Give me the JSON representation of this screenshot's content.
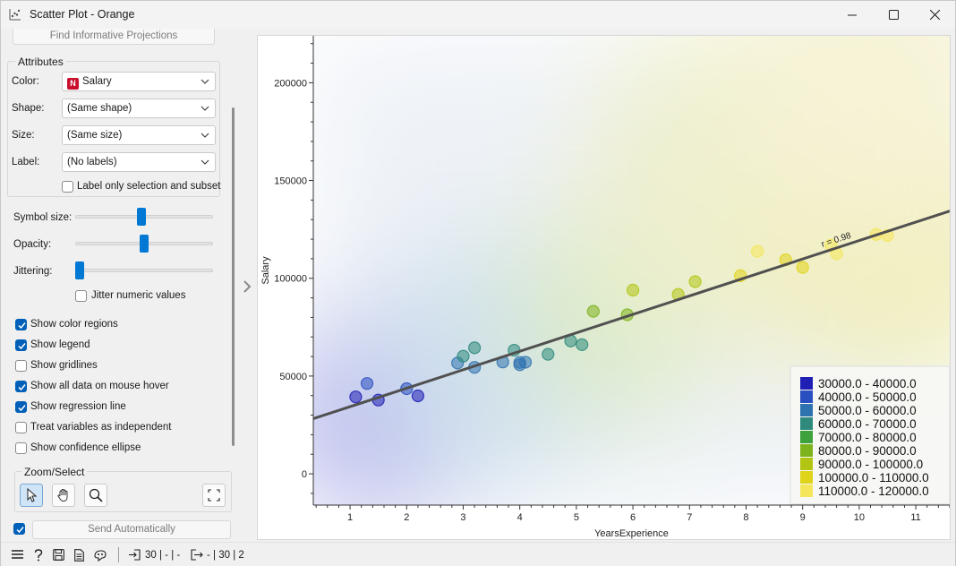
{
  "window": {
    "title": "Scatter Plot - Orange"
  },
  "sidebar": {
    "find_projections_label": "Find Informative Projections",
    "attributes_title": "Attributes",
    "color_label": "Color:",
    "color_badge": "N",
    "color_value": "Salary",
    "shape_label": "Shape:",
    "shape_value": "(Same shape)",
    "size_label": "Size:",
    "size_value": "(Same size)",
    "label_label": "Label:",
    "label_value": "(No labels)",
    "label_only_selection": {
      "label": "Label only selection and subset",
      "checked": false
    },
    "symbol_size_label": "Symbol size:",
    "symbol_size_level": 0.48,
    "opacity_label": "Opacity:",
    "opacity_level": 0.5,
    "jittering_label": "Jittering:",
    "jittering_level": 0.0,
    "jitter_numeric": {
      "label": "Jitter numeric values",
      "checked": false
    },
    "checks": [
      {
        "label": "Show color regions",
        "checked": true
      },
      {
        "label": "Show legend",
        "checked": true
      },
      {
        "label": "Show gridlines",
        "checked": false
      },
      {
        "label": "Show all data on mouse hover",
        "checked": true
      },
      {
        "label": "Show regression line",
        "checked": true
      },
      {
        "label": "Treat variables as independent",
        "checked": false
      },
      {
        "label": "Show confidence ellipse",
        "checked": false
      }
    ],
    "zoom_select_title": "Zoom/Select",
    "send_auto_checked": true,
    "send_auto_label": "Send Automatically"
  },
  "statusbar": {
    "input_summary": "30 | - | -",
    "output_summary": "- | 30 | 2"
  },
  "chart_data": {
    "type": "scatter",
    "xlabel": "YearsExperience",
    "ylabel": "Salary",
    "xlim": [
      0.35,
      11.6
    ],
    "ylim": [
      -16000,
      224000
    ],
    "xticks": [
      1,
      2,
      3,
      4,
      5,
      6,
      7,
      8,
      9,
      10,
      11
    ],
    "yticks": [
      0,
      50000,
      100000,
      150000,
      200000
    ],
    "points": [
      [
        1.1,
        39343
      ],
      [
        1.3,
        46205
      ],
      [
        1.5,
        37731
      ],
      [
        2.0,
        43525
      ],
      [
        2.2,
        39891
      ],
      [
        2.9,
        56642
      ],
      [
        3.0,
        60150
      ],
      [
        3.2,
        54445
      ],
      [
        3.2,
        64445
      ],
      [
        3.7,
        57189
      ],
      [
        3.9,
        63218
      ],
      [
        4.0,
        55794
      ],
      [
        4.0,
        56957
      ],
      [
        4.1,
        57081
      ],
      [
        4.5,
        61111
      ],
      [
        4.9,
        67938
      ],
      [
        5.1,
        66029
      ],
      [
        5.3,
        83088
      ],
      [
        5.9,
        81363
      ],
      [
        6.0,
        93940
      ],
      [
        6.8,
        91738
      ],
      [
        7.1,
        98273
      ],
      [
        7.9,
        101302
      ],
      [
        8.2,
        113812
      ],
      [
        8.7,
        109431
      ],
      [
        9.0,
        105582
      ],
      [
        9.5,
        116969
      ],
      [
        9.6,
        112635
      ],
      [
        10.3,
        122391
      ],
      [
        10.5,
        121872
      ]
    ],
    "regression": {
      "x": [
        0.35,
        11.6
      ],
      "y": [
        28200,
        134400
      ],
      "label": "r = 0.98"
    },
    "legend_position": "bottom-right",
    "legend": [
      {
        "label": "30000.0 - 40000.0",
        "color": "#1f1fb5"
      },
      {
        "label": "40000.0 - 50000.0",
        "color": "#2a4fc0"
      },
      {
        "label": "50000.0 - 60000.0",
        "color": "#2f72b0"
      },
      {
        "label": "60000.0 - 70000.0",
        "color": "#2e8a7c"
      },
      {
        "label": "70000.0 - 80000.0",
        "color": "#3da23b"
      },
      {
        "label": "80000.0 - 90000.0",
        "color": "#7db31c"
      },
      {
        "label": "90000.0 - 100000.0",
        "color": "#b3c513"
      },
      {
        "label": "100000.0 - 110000.0",
        "color": "#e0d41a"
      },
      {
        "label": "110000.0 - 120000.0",
        "color": "#f4e65a"
      }
    ]
  }
}
